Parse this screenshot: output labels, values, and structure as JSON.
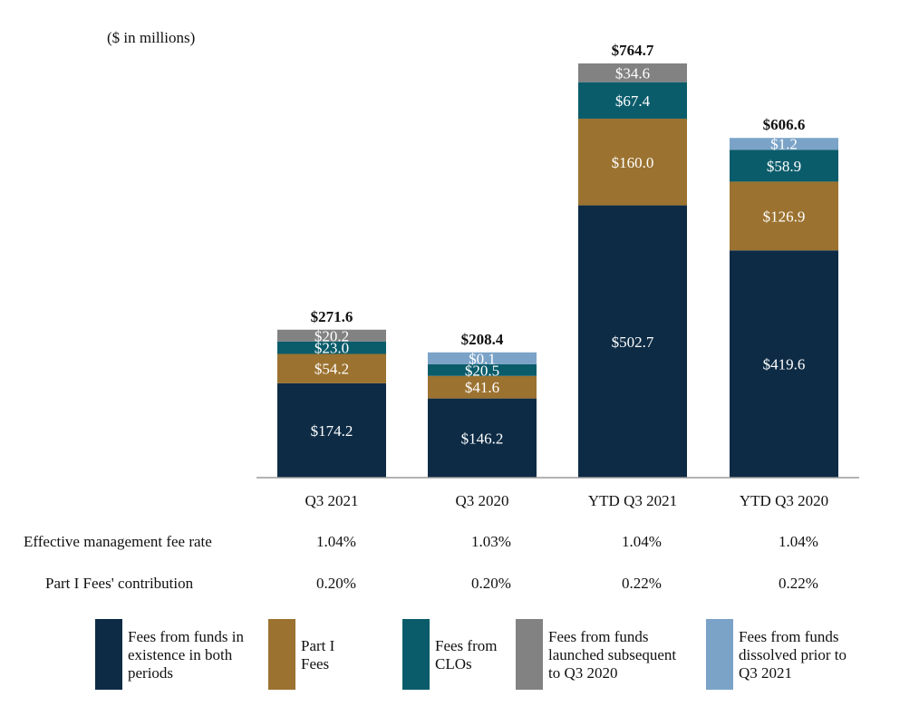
{
  "units_label": "($ in millions)",
  "chart_data": {
    "type": "bar",
    "stacked": true,
    "categories": [
      "Q3 2021",
      "Q3 2020",
      "YTD Q3 2021",
      "YTD Q3 2020"
    ],
    "totals": [
      "$271.6",
      "$208.4",
      "$764.7",
      "$606.6"
    ],
    "total_values": [
      271.6,
      208.4,
      764.7,
      606.6
    ],
    "ylim": [
      0,
      800
    ],
    "series": [
      {
        "key": "existing",
        "name": "Fees from funds in existence in both periods",
        "color": "#0d2b45",
        "label_color": "#ffffff",
        "values": [
          174.2,
          146.2,
          502.7,
          419.6
        ],
        "labels": [
          "$174.2",
          "$146.2",
          "$502.7",
          "$419.6"
        ]
      },
      {
        "key": "part1",
        "name": "Part I Fees",
        "color": "#9b7230",
        "label_color": "#ffffff",
        "values": [
          54.2,
          41.6,
          160.0,
          126.9
        ],
        "labels": [
          "$54.2",
          "$41.6",
          "$160.0",
          "$126.9"
        ]
      },
      {
        "key": "clo",
        "name": "Fees from CLOs",
        "color": "#0b5c6b",
        "label_color": "#ffffff",
        "values": [
          23.0,
          20.5,
          67.4,
          58.9
        ],
        "labels": [
          "$23.0",
          "$20.5",
          "$67.4",
          "$58.9"
        ]
      },
      {
        "key": "launched",
        "name": "Fees from funds launched subsequent to Q3 2020",
        "color": "#828282",
        "label_color": "#ffffff",
        "values": [
          20.2,
          0,
          34.6,
          0
        ],
        "labels": [
          "$20.2",
          "",
          "$34.6",
          ""
        ]
      },
      {
        "key": "dissolved",
        "name": "Fees from funds dissolved prior to Q3 2021",
        "color": "#7ba3c8",
        "label_color": "#ffffff",
        "values": [
          0,
          0.1,
          0,
          1.2
        ],
        "labels": [
          "",
          "$0.1",
          "",
          "$1.2"
        ]
      }
    ]
  },
  "table": {
    "rows": [
      {
        "label": "Effective management fee rate",
        "values": [
          "1.04%",
          "1.03%",
          "1.04%",
          "1.04%"
        ]
      },
      {
        "label": "Part I Fees' contribution",
        "values": [
          "0.20%",
          "0.20%",
          "0.22%",
          "0.22%"
        ]
      }
    ]
  },
  "legend": [
    {
      "text": "Fees from funds in\nexistence in both\nperiods",
      "color": "#0d2b45"
    },
    {
      "text": "Part I\nFees",
      "color": "#9b7230"
    },
    {
      "text": "Fees from\nCLOs",
      "color": "#0b5c6b"
    },
    {
      "text": "Fees from funds\nlaunched subsequent\nto Q3 2020",
      "color": "#828282"
    },
    {
      "text": "Fees from funds\ndissolved prior to\nQ3 2021",
      "color": "#7ba3c8"
    }
  ]
}
